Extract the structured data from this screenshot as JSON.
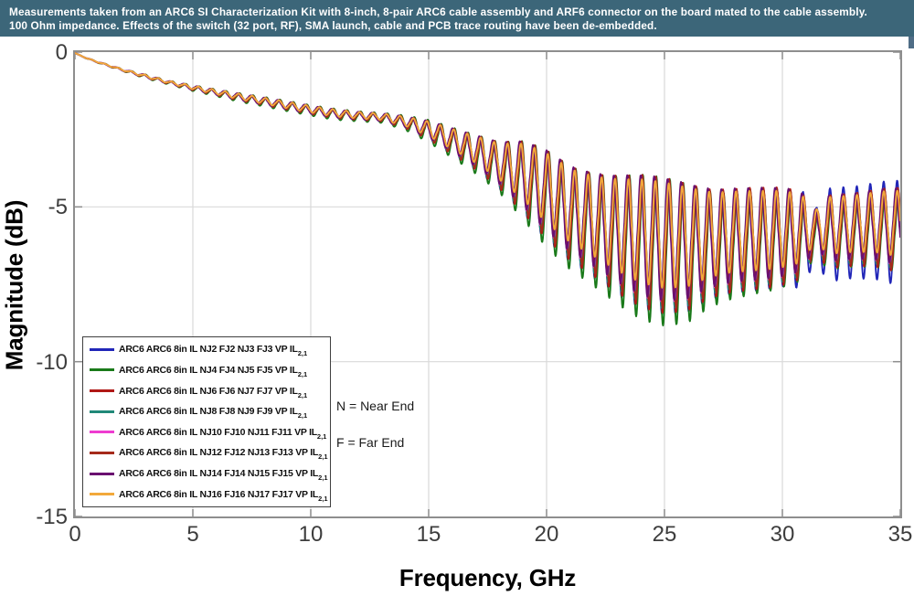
{
  "banner": {
    "line1": "Measurements taken from an ARC6 SI Characterization Kit with 8-inch, 8-pair ARC6 cable assembly and ARF6 connector on the board mated to the cable assembly.",
    "line2": "100 Ohm impedance. Effects of the switch (32 port, RF), SMA launch, cable and PCB trace routing have been de-embedded.",
    "background": "#3c6679",
    "text_color": "#ffffff"
  },
  "colors": {
    "grid": "#d9d9d9",
    "frame": "#8e8e8e",
    "tick_label": "#3d3d3d",
    "corner_tab": "#4f6d86"
  },
  "chart_data": {
    "type": "line",
    "title": "",
    "xlabel": "Frequency, GHz",
    "ylabel": "Magnitude (dB)",
    "xlim": [
      0,
      35
    ],
    "ylim": [
      -15,
      0
    ],
    "xticks": [
      0,
      5,
      10,
      15,
      20,
      25,
      30,
      35
    ],
    "yticks": [
      0,
      -5,
      -10,
      -15
    ],
    "grid": true,
    "legend_position": "lower-left",
    "annotations": [
      "N = Near End",
      "F = Far End"
    ],
    "ripple_model": {
      "period_ghz": 0.57,
      "tip_sharpness": 1.3,
      "amp_mod": {
        "period_ghz": 5.3,
        "depth": 0.12,
        "phase": 0.8
      },
      "notch": {
        "center_ghz": 31.4,
        "width_ghz": 0.4,
        "depth": 0.45
      }
    },
    "envelope_f_mid_amp": [
      [
        0,
        -0.03,
        0
      ],
      [
        0.5,
        -0.2,
        0.01
      ],
      [
        1,
        -0.33,
        0.02
      ],
      [
        2,
        -0.57,
        0.03
      ],
      [
        3,
        -0.78,
        0.05
      ],
      [
        4,
        -0.98,
        0.05
      ],
      [
        5,
        -1.15,
        0.08
      ],
      [
        6,
        -1.3,
        0.1
      ],
      [
        7,
        -1.45,
        0.12
      ],
      [
        8,
        -1.58,
        0.12
      ],
      [
        9,
        -1.72,
        0.13
      ],
      [
        10,
        -1.86,
        0.14
      ],
      [
        11,
        -1.98,
        0.16
      ],
      [
        12,
        -2.05,
        0.14
      ],
      [
        13,
        -2.1,
        0.13
      ],
      [
        14,
        -2.25,
        0.18
      ],
      [
        15,
        -2.5,
        0.3
      ],
      [
        16,
        -2.85,
        0.45
      ],
      [
        17,
        -3.2,
        0.6
      ],
      [
        18,
        -3.6,
        0.75
      ],
      [
        19,
        -3.95,
        1.1
      ],
      [
        20,
        -4.5,
        1.4
      ],
      [
        21,
        -5.1,
        1.6
      ],
      [
        22,
        -5.45,
        1.8
      ],
      [
        23,
        -5.75,
        1.95
      ],
      [
        24,
        -5.95,
        2.05
      ],
      [
        25,
        -6.1,
        2.1
      ],
      [
        26,
        -6.15,
        2.1
      ],
      [
        27,
        -6.05,
        1.9
      ],
      [
        28,
        -5.95,
        1.75
      ],
      [
        29,
        -5.9,
        1.6
      ],
      [
        30,
        -5.85,
        1.5
      ],
      [
        31,
        -5.8,
        1.4
      ],
      [
        32,
        -5.7,
        1.3
      ],
      [
        33,
        -5.65,
        1.25
      ],
      [
        34,
        -5.6,
        1.25
      ],
      [
        35,
        -5.65,
        1.3
      ]
    ],
    "series": [
      {
        "label": "ARC6 ARC6 8in IL NJ2 FJ2 NJ3 FJ3 VP IL",
        "sub": "2,1",
        "color": "#2126b8",
        "mid_offset": -0.3,
        "phase": 0.5,
        "amp_profile": [
          [
            0,
            1.0
          ],
          [
            30,
            1.0
          ],
          [
            31.5,
            1.35
          ],
          [
            35,
            1.3
          ]
        ]
      },
      {
        "label": "ARC6 ARC6 8in IL NJ4 FJ4 NJ5 FJ5 VP IL",
        "sub": "2,1",
        "color": "#1a7a1a",
        "mid_offset": -0.35,
        "phase": 0.0,
        "amp_profile": [
          [
            0,
            1.3
          ],
          [
            14,
            1.3
          ],
          [
            18,
            1.15
          ],
          [
            26,
            1.15
          ],
          [
            30,
            1.0
          ],
          [
            35,
            0.95
          ]
        ]
      },
      {
        "label": "ARC6 ARC6 8in IL NJ6 FJ6 NJ7 FJ7 VP IL",
        "sub": "2,1",
        "color": "#b01815",
        "mid_offset": -0.15,
        "phase": 0.25,
        "amp_profile": [
          [
            0,
            1.05
          ],
          [
            35,
            1.05
          ]
        ]
      },
      {
        "label": "ARC6 ARC6 8in IL NJ8 FJ8 NJ9 FJ9 VP IL",
        "sub": "2,1",
        "color": "#208878",
        "mid_offset": -0.1,
        "phase": 0.7,
        "amp_profile": [
          [
            0,
            1.0
          ],
          [
            35,
            1.0
          ]
        ]
      },
      {
        "label": "ARC6 ARC6 8in IL NJ10 FJ10 NJ11 FJ11 VP IL",
        "sub": "2,1",
        "color": "#ee3cd0",
        "mid_offset": 0.0,
        "phase": 0.9,
        "amp_profile": [
          [
            0,
            0.95
          ],
          [
            35,
            0.95
          ]
        ]
      },
      {
        "label": "ARC6 ARC6 8in IL NJ12 FJ12 NJ13 FJ13 VP IL",
        "sub": "2,1",
        "color": "#a52a1a",
        "mid_offset": -0.12,
        "phase": 0.15,
        "amp_profile": [
          [
            0,
            1.0
          ],
          [
            35,
            1.0
          ]
        ]
      },
      {
        "label": "ARC6 ARC6 8in IL NJ14 FJ14 NJ15 FJ15 VP IL",
        "sub": "2,1",
        "color": "#6a1070",
        "mid_offset": 0.05,
        "phase": 1.0,
        "amp_profile": [
          [
            0,
            0.95
          ],
          [
            35,
            0.95
          ]
        ]
      },
      {
        "label": "ARC6 ARC6 8in IL NJ16 FJ16 NJ17 FJ17 VP IL",
        "sub": "2,1",
        "color": "#f2a93b",
        "mid_offset": 0.18,
        "phase": 0.45,
        "amp_profile": [
          [
            0,
            0.82
          ],
          [
            35,
            0.82
          ]
        ]
      }
    ]
  }
}
